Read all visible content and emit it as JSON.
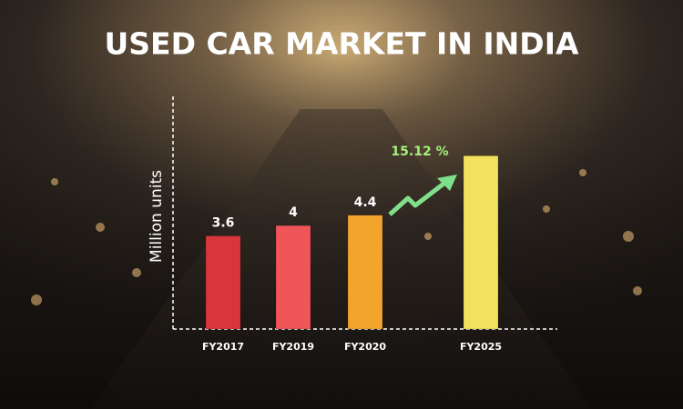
{
  "chart_data": {
    "type": "bar",
    "title": "USED CAR MARKET IN INDIA",
    "y_label": "Million units",
    "annotation": "15.12 %",
    "categories": [
      "FY2017",
      "FY2019",
      "FY2020",
      "FY2025"
    ],
    "values": [
      3.6,
      4,
      4.4,
      6.7
    ],
    "value_labels": [
      "3.6",
      "4",
      "4.4",
      null
    ],
    "colors": [
      "#d9363c",
      "#f0555a",
      "#f2a42c",
      "#f2e15c"
    ],
    "ylim": [
      0,
      9
    ]
  }
}
